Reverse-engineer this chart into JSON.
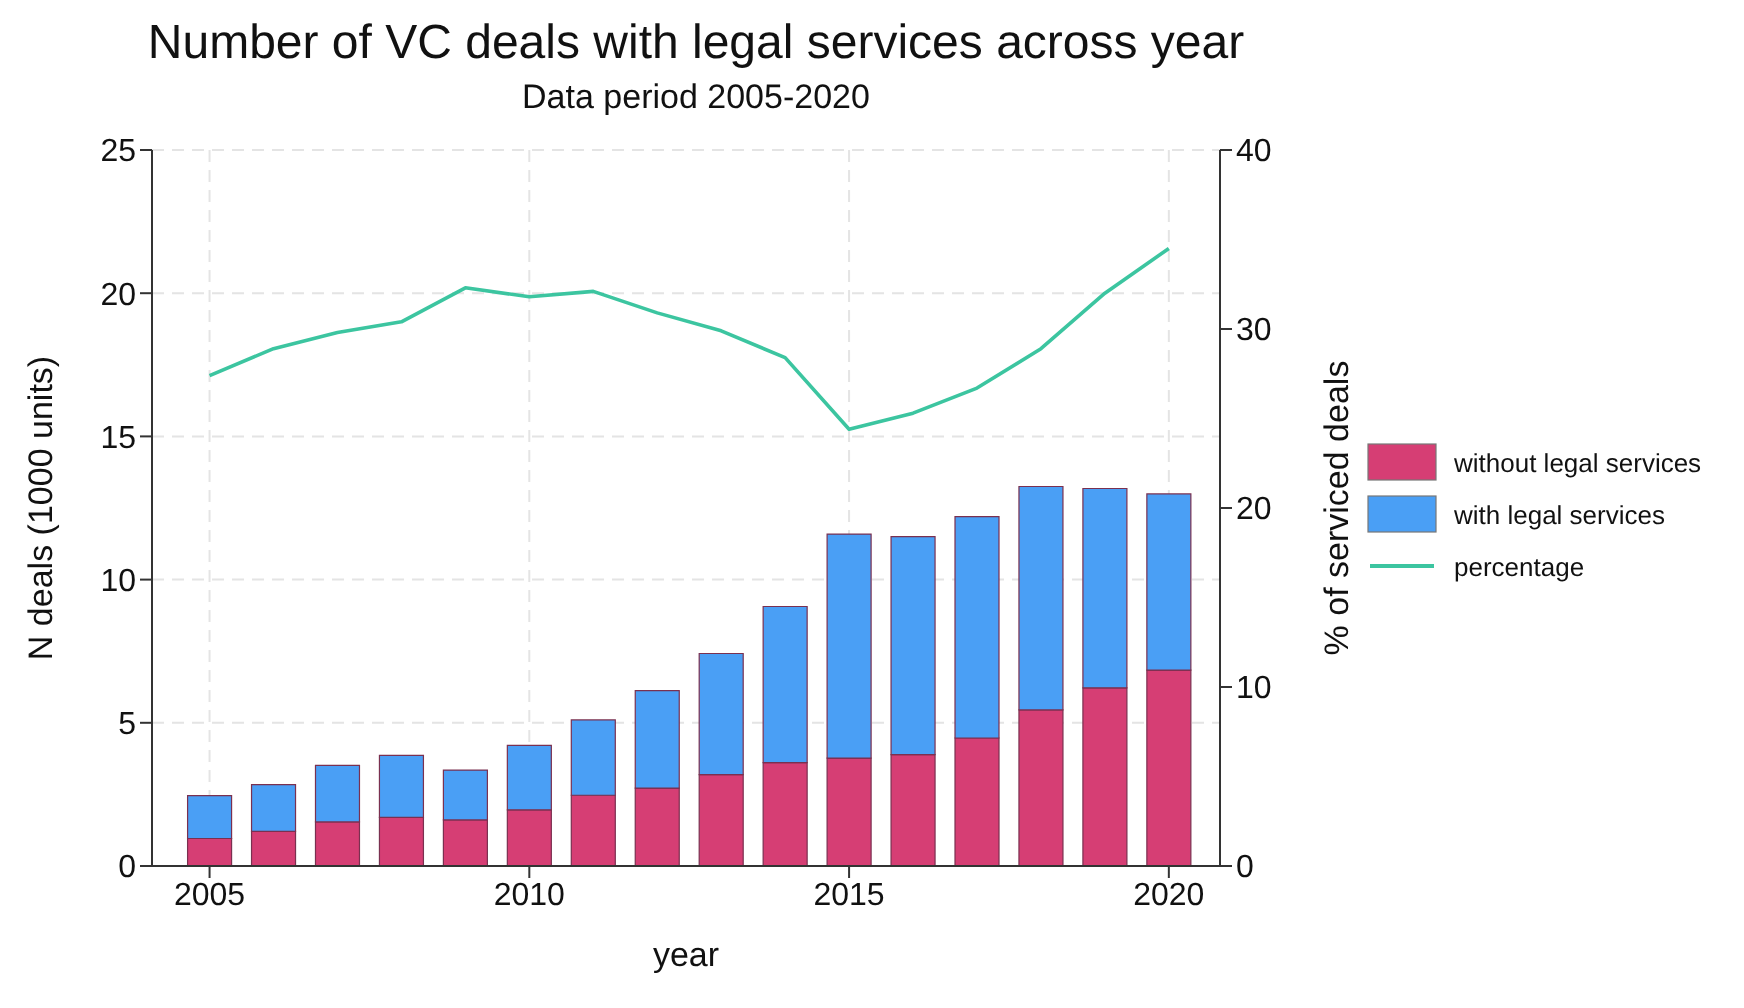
{
  "chart_data": {
    "type": "bar",
    "title": "Number of VC deals with legal services across year",
    "subtitle": "Data period 2005-2020",
    "xlabel": "year",
    "ylabel": "N deals (1000 units)",
    "y2label": "% of serviced deals",
    "x": [
      2005,
      2006,
      2007,
      2008,
      2009,
      2010,
      2011,
      2012,
      2013,
      2014,
      2015,
      2016,
      2017,
      2018,
      2019,
      2020
    ],
    "stacked": true,
    "series": [
      {
        "name": "without legal services",
        "color": "#d63e74",
        "values": [
          0.96,
          1.21,
          1.54,
          1.7,
          1.61,
          1.96,
          2.47,
          2.72,
          3.19,
          3.61,
          3.77,
          3.89,
          4.47,
          5.45,
          6.22,
          6.84
        ]
      },
      {
        "name": "with legal services",
        "color": "#4a9ff5",
        "values": [
          1.5,
          1.63,
          1.97,
          2.16,
          1.74,
          2.25,
          2.63,
          3.4,
          4.23,
          5.45,
          7.82,
          7.61,
          7.73,
          7.8,
          6.96,
          6.15
        ]
      },
      {
        "name": "percentage",
        "type": "line",
        "axis": "y2",
        "color": "#3cc5a0",
        "values": [
          27.4,
          28.9,
          29.8,
          30.4,
          32.3,
          31.8,
          32.1,
          30.9,
          29.9,
          28.4,
          24.4,
          25.3,
          26.7,
          28.9,
          32.0,
          34.5
        ]
      }
    ],
    "xlim": [
      2004.1,
      2020.8
    ],
    "xticks": [
      2005,
      2010,
      2015,
      2020
    ],
    "ylim": [
      0,
      25
    ],
    "yticks": [
      0,
      5,
      10,
      15,
      20,
      25
    ],
    "y2lim": [
      0,
      40
    ],
    "y2ticks": [
      0,
      10,
      20,
      30,
      40
    ],
    "grid": true,
    "legend": "right",
    "marker": "none"
  }
}
